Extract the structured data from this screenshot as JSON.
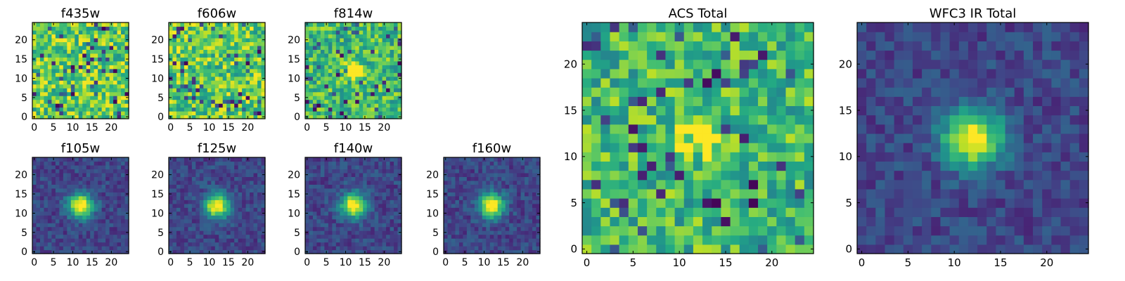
{
  "chart_data": [
    {
      "type": "heatmap",
      "title": "f435w",
      "colormap": "viridis",
      "grid": false,
      "x_range": [
        0,
        24
      ],
      "y_range": [
        0,
        24
      ],
      "x_ticks": [
        0,
        5,
        10,
        15,
        20
      ],
      "y_ticks": [
        0,
        5,
        10,
        15,
        20
      ],
      "pattern": "noise",
      "source_peak": null
    },
    {
      "type": "heatmap",
      "title": "f606w",
      "colormap": "viridis",
      "grid": false,
      "x_range": [
        0,
        24
      ],
      "y_range": [
        0,
        24
      ],
      "x_ticks": [
        0,
        5,
        10,
        15,
        20
      ],
      "y_ticks": [
        0,
        5,
        10,
        15,
        20
      ],
      "pattern": "noise",
      "source_peak": null
    },
    {
      "type": "heatmap",
      "title": "f814w",
      "colormap": "viridis",
      "grid": false,
      "x_range": [
        0,
        24
      ],
      "y_range": [
        0,
        24
      ],
      "x_ticks": [
        0,
        5,
        10,
        15,
        20
      ],
      "y_ticks": [
        0,
        5,
        10,
        15,
        20
      ],
      "pattern": "noise+faint-source",
      "source_peak": [
        12,
        12
      ]
    },
    {
      "type": "heatmap",
      "title": "f105w",
      "colormap": "viridis",
      "grid": false,
      "x_range": [
        0,
        24
      ],
      "y_range": [
        0,
        24
      ],
      "x_ticks": [
        0,
        5,
        10,
        15,
        20
      ],
      "y_ticks": [
        0,
        5,
        10,
        15,
        20
      ],
      "pattern": "compact-source",
      "source_peak": [
        12,
        12
      ]
    },
    {
      "type": "heatmap",
      "title": "f125w",
      "colormap": "viridis",
      "grid": false,
      "x_range": [
        0,
        24
      ],
      "y_range": [
        0,
        24
      ],
      "x_ticks": [
        0,
        5,
        10,
        15,
        20
      ],
      "y_ticks": [
        0,
        5,
        10,
        15,
        20
      ],
      "pattern": "compact-source",
      "source_peak": [
        12,
        12
      ]
    },
    {
      "type": "heatmap",
      "title": "f140w",
      "colormap": "viridis",
      "grid": false,
      "x_range": [
        0,
        24
      ],
      "y_range": [
        0,
        24
      ],
      "x_ticks": [
        0,
        5,
        10,
        15,
        20
      ],
      "y_ticks": [
        0,
        5,
        10,
        15,
        20
      ],
      "pattern": "compact-source",
      "source_peak": [
        12,
        12
      ]
    },
    {
      "type": "heatmap",
      "title": "f160w",
      "colormap": "viridis",
      "grid": false,
      "x_range": [
        0,
        24
      ],
      "y_range": [
        0,
        24
      ],
      "x_ticks": [
        0,
        5,
        10,
        15,
        20
      ],
      "y_ticks": [
        0,
        5,
        10,
        15,
        20
      ],
      "pattern": "compact-source",
      "source_peak": [
        12,
        12
      ]
    },
    {
      "type": "heatmap",
      "title": "ACS Total",
      "colormap": "viridis",
      "grid": false,
      "x_range": [
        0,
        24
      ],
      "y_range": [
        0,
        24
      ],
      "x_ticks": [
        0,
        5,
        10,
        15,
        20
      ],
      "y_ticks": [
        0,
        5,
        10,
        15,
        20
      ],
      "pattern": "noise+faint-source",
      "source_peak": [
        12,
        12
      ]
    },
    {
      "type": "heatmap",
      "title": "WFC3 IR Total",
      "colormap": "viridis",
      "grid": false,
      "x_range": [
        0,
        24
      ],
      "y_range": [
        0,
        24
      ],
      "x_ticks": [
        0,
        5,
        10,
        15,
        20
      ],
      "y_ticks": [
        0,
        5,
        10,
        15,
        20
      ],
      "pattern": "compact-source",
      "source_peak": [
        12,
        12
      ]
    }
  ]
}
